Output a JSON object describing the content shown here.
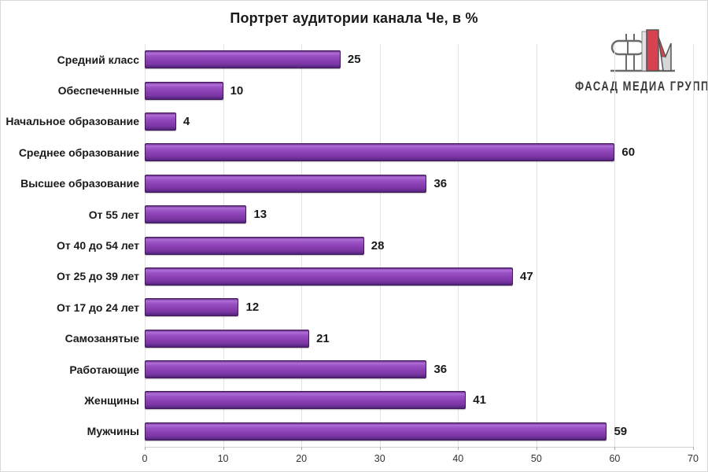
{
  "chart_data": {
    "type": "bar",
    "orientation": "horizontal",
    "title": "Портрет аудитории канала Че, в %",
    "categories": [
      "Средний класс",
      "Обеспеченные",
      "Начальное образование",
      "Среднее образование",
      "Высшее образование",
      "От 55 лет",
      "От 40 до 54 лет",
      "От 25 до 39 лет",
      "От 17 до 24 лет",
      "Самозанятые",
      "Работающие",
      "Женщины",
      "Мужчины"
    ],
    "values": [
      25,
      10,
      4,
      60,
      36,
      13,
      28,
      47,
      12,
      21,
      36,
      41,
      59
    ],
    "xlabel": "",
    "ylabel": "",
    "xlim": [
      0,
      70
    ],
    "x_ticks": [
      0,
      10,
      20,
      30,
      40,
      50,
      60,
      70
    ],
    "grid": "vertical-light-gray",
    "data_labels": true,
    "legend": "none",
    "bar_color": "#8a3fb3",
    "bar_border_color": "#43195e",
    "gridline_color": "#e3e3e3"
  },
  "logo": {
    "text": "ФАСАД МЕДИА ГРУПП",
    "accent_color": "#d8414f",
    "stroke_color": "#6b6b6b"
  }
}
